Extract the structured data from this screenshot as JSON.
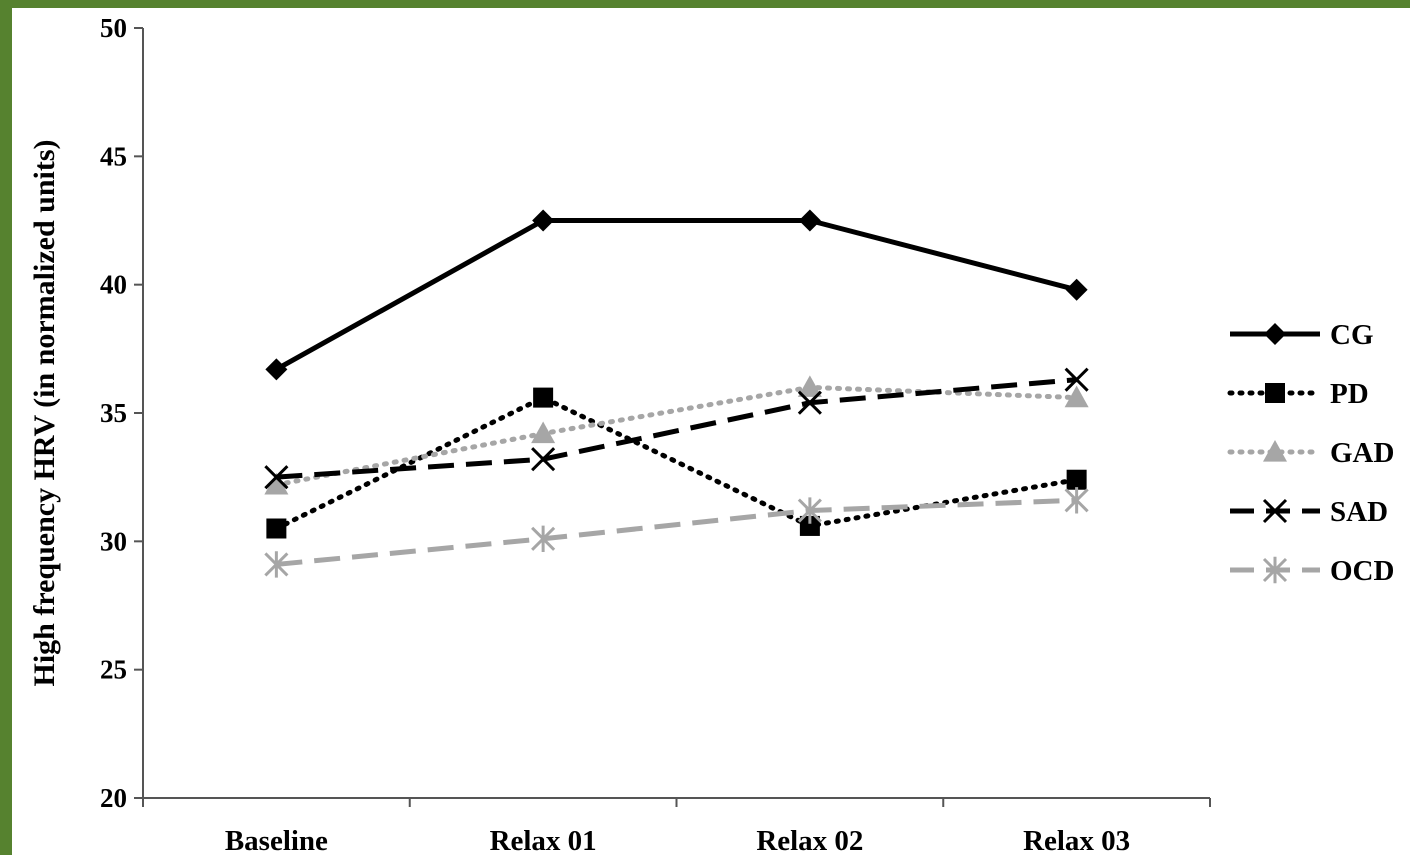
{
  "chart_data": {
    "type": "line",
    "title": "",
    "xlabel": "",
    "ylabel": "High frequency HRV (in normalized units)",
    "categories": [
      "Baseline",
      "Relax 01",
      "Relax 02",
      "Relax 03"
    ],
    "ylim": [
      20,
      50
    ],
    "yticks": [
      20,
      25,
      30,
      35,
      40,
      45,
      50
    ],
    "grid": false,
    "legend_position": "right",
    "series": [
      {
        "name": "CG",
        "values": [
          36.7,
          42.5,
          42.5,
          39.8
        ],
        "color": "#000000",
        "line_style": "solid",
        "marker": "diamond"
      },
      {
        "name": "PD",
        "values": [
          30.5,
          35.6,
          30.6,
          32.4
        ],
        "color": "#000000",
        "line_style": "dotted",
        "marker": "square"
      },
      {
        "name": "GAD",
        "values": [
          32.2,
          34.2,
          36.0,
          35.6
        ],
        "color": "#a6a6a6",
        "line_style": "dotted",
        "marker": "triangle"
      },
      {
        "name": "SAD",
        "values": [
          32.5,
          33.2,
          35.4,
          36.3
        ],
        "color": "#000000",
        "line_style": "dashed",
        "marker": "x"
      },
      {
        "name": "OCD",
        "values": [
          29.1,
          30.1,
          31.2,
          31.6
        ],
        "color": "#a6a6a6",
        "line_style": "dashed",
        "marker": "star"
      }
    ]
  }
}
